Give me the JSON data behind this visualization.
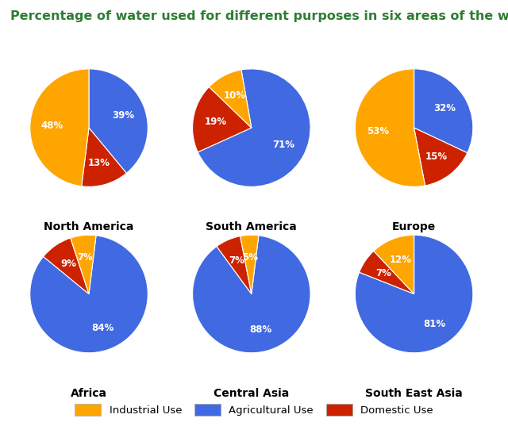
{
  "title": "Percentage of water used for different purposes in six areas of the world.",
  "title_color": "#2e7d32",
  "title_fontsize": 11.5,
  "background_color": "#ffffff",
  "regions": [
    "North America",
    "South America",
    "Europe",
    "Africa",
    "Central Asia",
    "South East Asia"
  ],
  "data": {
    "North America": {
      "Industrial": 48,
      "Agricultural": 39,
      "Domestic": 13
    },
    "South America": {
      "Industrial": 10,
      "Agricultural": 71,
      "Domestic": 19
    },
    "Europe": {
      "Industrial": 53,
      "Agricultural": 32,
      "Domestic": 15
    },
    "Africa": {
      "Industrial": 7,
      "Agricultural": 84,
      "Domestic": 9
    },
    "Central Asia": {
      "Industrial": 5,
      "Agricultural": 88,
      "Domestic": 7
    },
    "South East Asia": {
      "Industrial": 12,
      "Agricultural": 81,
      "Domestic": 7
    }
  },
  "colors": {
    "Industrial": "#FFA500",
    "Agricultural": "#4169E1",
    "Domestic": "#CC2200"
  },
  "order": [
    "Agricultural",
    "Domestic",
    "Industrial"
  ],
  "start_angles": {
    "North America": 90,
    "South America": 100,
    "Europe": 90,
    "Africa": 83,
    "Central Asia": 83,
    "South East Asia": 90
  },
  "label_color": "#ffffff",
  "label_fontsize": 8.5,
  "region_label_fontsize": 10,
  "legend_labels": [
    "Industrial Use",
    "Agricultural Use",
    "Domestic Use"
  ],
  "legend_keys": [
    "Industrial",
    "Agricultural",
    "Domestic"
  ],
  "legend_colors": [
    "#FFA500",
    "#4169E1",
    "#CC2200"
  ]
}
